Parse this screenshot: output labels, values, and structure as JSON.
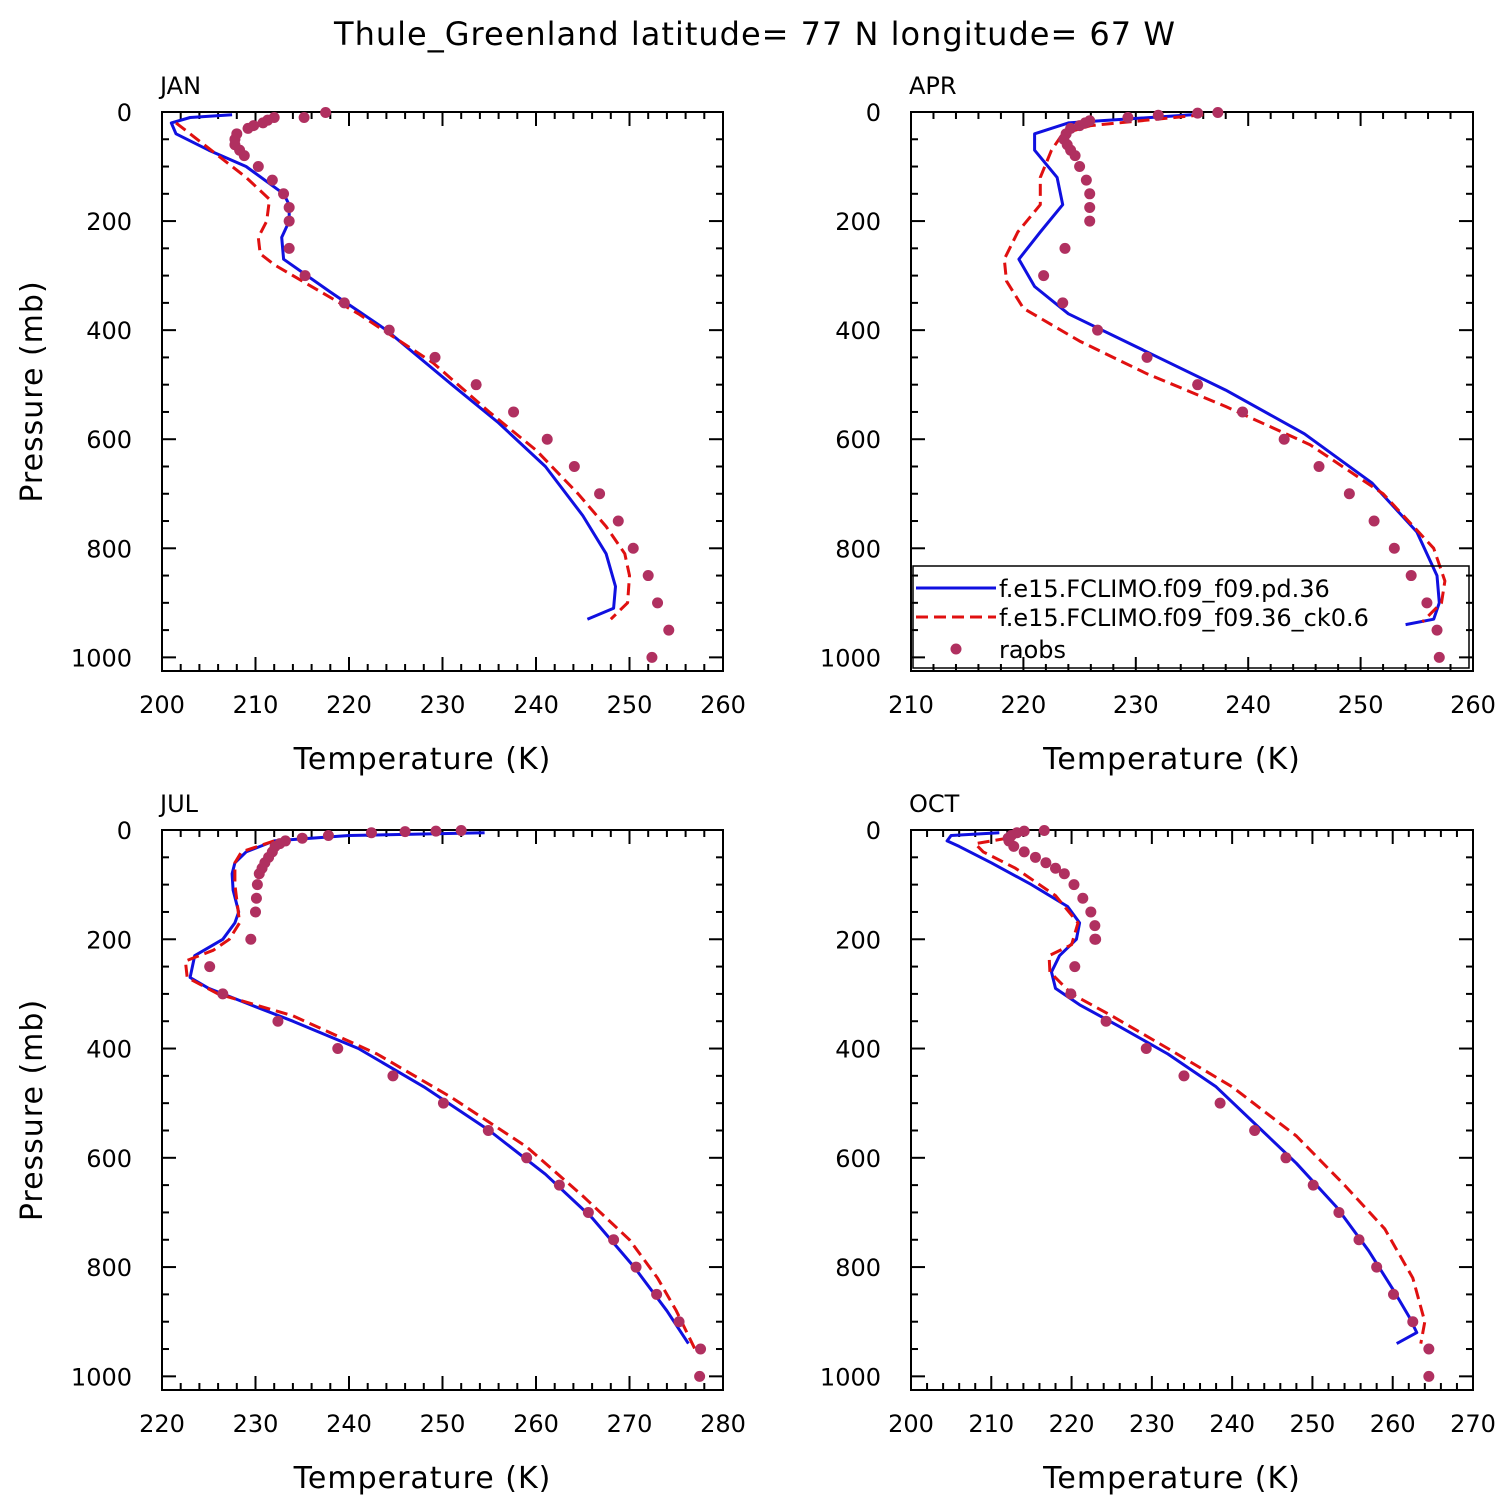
{
  "title": "Thule_Greenland  latitude= 77 N longitude= 67 W",
  "legend": [
    {
      "label": "f.e15.FCLIMO.f09_f09.pd.36",
      "color": "#1010e0",
      "style": "solid"
    },
    {
      "label": "f.e15.FCLIMO.f09_f09.36_ck0.6",
      "color": "#e01010",
      "style": "dashed"
    },
    {
      "label": "raobs",
      "color": "#b03060",
      "style": "marker"
    }
  ],
  "chart_data": [
    {
      "type": "line",
      "panel": "JAN",
      "xlabel": "Temperature (K)",
      "ylabel": "Pressure (mb)",
      "xlim": [
        200,
        260
      ],
      "ylim": [
        1025,
        0
      ],
      "xticks": [
        200,
        210,
        220,
        230,
        240,
        250,
        260
      ],
      "yticks": [
        0,
        200,
        400,
        600,
        800,
        1000
      ],
      "series": [
        {
          "name": "f.e15.FCLIMO.f09_f09.pd.36",
          "style": "solid",
          "color": "#1010e0",
          "x": [
            207.5,
            203,
            201,
            201.5,
            205,
            209,
            213,
            213.6,
            213.6,
            212.8,
            213,
            218,
            224,
            231,
            236,
            241,
            245,
            247.5,
            248.5,
            248.3,
            245.5
          ],
          "y": [
            5,
            10,
            20,
            40,
            70,
            100,
            150,
            170,
            200,
            230,
            270,
            330,
            400,
            500,
            570,
            650,
            740,
            810,
            870,
            910,
            930
          ]
        },
        {
          "name": "f.e15.FCLIMO.f09_f09.36_ck0.6",
          "style": "dashed",
          "color": "#e01010",
          "x": [
            201.5,
            203,
            206,
            209,
            211.5,
            211.2,
            210.3,
            210.5,
            212,
            215,
            221,
            229,
            235,
            240,
            244.5,
            247.5,
            249.5,
            250,
            249.8,
            248
          ],
          "y": [
            20,
            40,
            80,
            120,
            160,
            200,
            230,
            260,
            280,
            310,
            370,
            460,
            550,
            620,
            700,
            760,
            810,
            850,
            900,
            930
          ]
        },
        {
          "name": "raobs",
          "style": "marker",
          "color": "#b03060",
          "x": [
            217.5,
            215.2,
            212,
            211.3,
            210.8,
            209.8,
            209.2,
            208,
            207.8,
            207.8,
            208.3,
            208.8,
            210.3,
            211.8,
            213,
            213.6,
            213.6,
            213.6,
            215.3,
            219.5,
            224.3,
            229.2,
            233.6,
            237.6,
            241.2,
            244.1,
            246.8,
            248.8,
            250.4,
            252,
            253,
            254.2,
            252.4
          ],
          "y": [
            1,
            10,
            10,
            15,
            20,
            25,
            30,
            40,
            50,
            60,
            70,
            80,
            100,
            125,
            150,
            175,
            200,
            250,
            300,
            350,
            400,
            450,
            500,
            550,
            600,
            650,
            700,
            750,
            800,
            850,
            900,
            950,
            1000
          ]
        }
      ]
    },
    {
      "type": "line",
      "panel": "APR",
      "xlabel": "Temperature (K)",
      "ylabel": "",
      "xlim": [
        210,
        260
      ],
      "ylim": [
        1025,
        0
      ],
      "xticks": [
        210,
        220,
        230,
        240,
        250,
        260
      ],
      "yticks": [
        0,
        200,
        400,
        600,
        800,
        1000
      ],
      "series": [
        {
          "name": "f.e15.FCLIMO.f09_f09.pd.36",
          "style": "solid",
          "color": "#1010e0",
          "x": [
            235,
            224,
            221,
            221,
            223,
            223.5,
            221.5,
            219.6,
            221,
            224,
            230,
            238,
            245,
            251,
            255,
            256.8,
            257,
            256.5,
            254
          ],
          "y": [
            5,
            20,
            40,
            70,
            120,
            170,
            220,
            270,
            320,
            370,
            430,
            510,
            590,
            680,
            770,
            850,
            900,
            930,
            940
          ]
        },
        {
          "name": "f.e15.FCLIMO.f09_f09.36_ck0.6",
          "style": "dashed",
          "color": "#e01010",
          "x": [
            236,
            226,
            223.5,
            222.5,
            221.5,
            221.5,
            219.5,
            218.3,
            218.5,
            220,
            225,
            231,
            238,
            245.5,
            252,
            256.5,
            257.5,
            257.2,
            255.5
          ],
          "y": [
            5,
            25,
            40,
            70,
            120,
            170,
            220,
            270,
            310,
            360,
            420,
            480,
            540,
            610,
            700,
            800,
            860,
            900,
            935
          ]
        },
        {
          "name": "raobs",
          "style": "marker",
          "color": "#b03060",
          "x": [
            237.3,
            235.5,
            232,
            229.3,
            225.9,
            225.5,
            225,
            224.2,
            223.8,
            223.6,
            223.9,
            224.2,
            224.6,
            225,
            225.6,
            225.9,
            225.9,
            225.9,
            223.7,
            221.8,
            223.5,
            226.6,
            231,
            235.5,
            239.5,
            243.2,
            246.3,
            249,
            251.2,
            253,
            254.5,
            255.9,
            256.8,
            257.0
          ],
          "y": [
            1,
            2,
            6,
            10,
            16,
            20,
            25,
            30,
            40,
            50,
            60,
            70,
            80,
            100,
            125,
            150,
            175,
            200,
            250,
            300,
            350,
            400,
            450,
            500,
            550,
            600,
            650,
            700,
            750,
            800,
            850,
            900,
            950,
            1000
          ]
        }
      ]
    },
    {
      "type": "line",
      "panel": "JUL",
      "xlabel": "Temperature (K)",
      "ylabel": "Pressure (mb)",
      "xlim": [
        220,
        280
      ],
      "ylim": [
        1025,
        0
      ],
      "xticks": [
        220,
        230,
        240,
        250,
        260,
        270,
        280
      ],
      "yticks": [
        0,
        200,
        400,
        600,
        800,
        1000
      ],
      "series": [
        {
          "name": "f.e15.FCLIMO.f09_f09.pd.36",
          "style": "solid",
          "color": "#1010e0",
          "x": [
            254.5,
            240,
            232,
            229,
            227.8,
            227.5,
            227.6,
            228.2,
            227.8,
            226.5,
            223.5,
            223,
            225,
            228,
            234,
            241,
            248,
            255,
            261,
            266,
            270.5,
            274,
            276.3
          ],
          "y": [
            5,
            10,
            20,
            40,
            60,
            80,
            110,
            150,
            170,
            200,
            230,
            270,
            290,
            310,
            350,
            400,
            470,
            550,
            630,
            710,
            800,
            880,
            940
          ]
        },
        {
          "name": "f.e15.FCLIMO.f09_f09.36_ck0.6",
          "style": "dashed",
          "color": "#e01010",
          "x": [
            232,
            228.5,
            227.8,
            227.8,
            228.3,
            227.2,
            225.5,
            222.5,
            222.7,
            226,
            234,
            243,
            251,
            259,
            265,
            270,
            273,
            275,
            277
          ],
          "y": [
            20,
            40,
            60,
            100,
            170,
            200,
            220,
            240,
            270,
            300,
            340,
            410,
            490,
            580,
            670,
            750,
            820,
            880,
            950
          ]
        },
        {
          "name": "raobs",
          "style": "marker",
          "color": "#b03060",
          "x": [
            252,
            249.3,
            246,
            242.4,
            237.8,
            235,
            233.2,
            232.6,
            232.1,
            231.8,
            231.4,
            231,
            230.7,
            230.4,
            230.2,
            230.1,
            230,
            229.5,
            225.1,
            226.5,
            232.4,
            238.8,
            244.7,
            250.1,
            254.9,
            259,
            262.5,
            265.6,
            268.3,
            270.7,
            272.9,
            275.3,
            277.6,
            277.5
          ],
          "y": [
            1,
            2,
            3,
            5,
            10,
            15,
            20,
            25,
            30,
            40,
            50,
            60,
            70,
            80,
            100,
            125,
            150,
            200,
            250,
            300,
            350,
            400,
            450,
            500,
            550,
            600,
            650,
            700,
            750,
            800,
            850,
            900,
            950,
            1000
          ]
        }
      ]
    },
    {
      "type": "line",
      "panel": "OCT",
      "xlabel": "Temperature (K)",
      "ylabel": "",
      "xlim": [
        200,
        270
      ],
      "ylim": [
        1025,
        0
      ],
      "xticks": [
        200,
        210,
        220,
        230,
        240,
        250,
        260,
        270
      ],
      "yticks": [
        0,
        200,
        400,
        600,
        800,
        1000
      ],
      "series": [
        {
          "name": "f.e15.FCLIMO.f09_f09.pd.36",
          "style": "solid",
          "color": "#1010e0",
          "x": [
            211,
            205,
            204.5,
            206,
            210,
            215,
            219.5,
            221,
            220.6,
            218.5,
            217.5,
            218,
            221,
            226,
            232,
            238,
            243,
            248,
            253,
            257,
            260,
            262,
            263,
            260.5
          ],
          "y": [
            5,
            10,
            20,
            30,
            60,
            100,
            140,
            170,
            200,
            230,
            260,
            290,
            320,
            360,
            410,
            470,
            540,
            610,
            690,
            770,
            840,
            890,
            920,
            940
          ]
        },
        {
          "name": "f.e15.FCLIMO.f09_f09.36_ck0.6",
          "style": "dashed",
          "color": "#e01010",
          "x": [
            212,
            208,
            209,
            213,
            218,
            220.8,
            220,
            217.2,
            217.3,
            220,
            225,
            232,
            240,
            248,
            254,
            259,
            262.5,
            264,
            263.5
          ],
          "y": [
            15,
            25,
            40,
            70,
            120,
            170,
            210,
            230,
            260,
            300,
            340,
            400,
            470,
            560,
            650,
            730,
            820,
            900,
            940
          ]
        },
        {
          "name": "raobs",
          "style": "marker",
          "color": "#b03060",
          "x": [
            216.6,
            214.1,
            213.2,
            212.5,
            212.1,
            212.2,
            212.8,
            214.1,
            215.5,
            216.8,
            218,
            219.1,
            220.3,
            221.4,
            222.4,
            222.9,
            223,
            222.9,
            220.4,
            219.9,
            224.3,
            229.3,
            234,
            238.5,
            242.8,
            246.7,
            250.1,
            253.3,
            255.8,
            258,
            260.1,
            262.5,
            264.5,
            264.5
          ],
          "y": [
            1,
            2,
            5,
            10,
            15,
            20,
            30,
            40,
            50,
            60,
            70,
            80,
            100,
            125,
            150,
            175,
            200,
            200,
            250,
            300,
            350,
            400,
            450,
            500,
            550,
            600,
            650,
            700,
            750,
            800,
            850,
            900,
            950,
            1000
          ]
        }
      ]
    }
  ]
}
